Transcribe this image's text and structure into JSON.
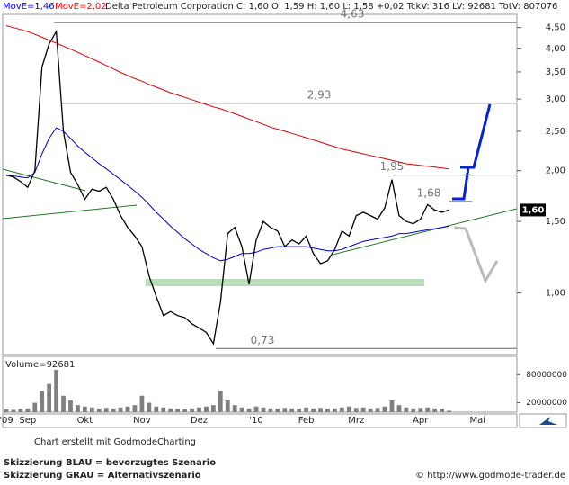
{
  "header": {
    "quote": "Delta Petroleum Corporation C: 1,60 O: 1,59 H: 1,60 L: 1,58 +0,02 TckV: 316 LV: 92681 TotV: 807076"
  },
  "chart_data": {
    "type": "line",
    "log_scale": true,
    "categories": [
      "'09",
      null,
      null,
      "Sep",
      null,
      null,
      null,
      null,
      null,
      null,
      null,
      "Okt",
      null,
      null,
      null,
      null,
      null,
      null,
      null,
      "Nov",
      null,
      null,
      null,
      null,
      null,
      null,
      null,
      "Dez",
      null,
      null,
      null,
      null,
      null,
      null,
      null,
      "'10",
      null,
      null,
      null,
      null,
      null,
      null,
      "Feb",
      null,
      null,
      null,
      null,
      null,
      null,
      "Mrz",
      null,
      null,
      null,
      null,
      null,
      null,
      null,
      null,
      "Apr",
      null,
      null,
      null,
      null,
      null,
      null,
      null,
      "Mai",
      null,
      null,
      null,
      null,
      null
    ],
    "ylim": [
      0.72,
      4.8
    ],
    "yticks": [
      {
        "value": 1,
        "label": "1,00"
      },
      {
        "value": 1.5,
        "label": "1,50"
      },
      {
        "value": 2,
        "label": "2,00"
      },
      {
        "value": 2.5,
        "label": "2,50"
      },
      {
        "value": 3,
        "label": "3,00"
      },
      {
        "value": 3.5,
        "label": "3,50"
      },
      {
        "value": 4,
        "label": "4,00"
      },
      {
        "value": 4.5,
        "label": "4,50"
      }
    ],
    "series": [
      {
        "color": "#000000",
        "values": [
          1.95,
          1.93,
          1.88,
          1.82,
          2.0,
          3.6,
          4.1,
          4.4,
          2.5,
          1.98,
          1.85,
          1.7,
          1.8,
          1.78,
          1.82,
          1.7,
          1.55,
          1.45,
          1.38,
          1.3,
          1.1,
          0.98,
          0.88,
          0.9,
          0.88,
          0.87,
          0.84,
          0.82,
          0.8,
          0.75,
          0.95,
          1.4,
          1.45,
          1.3,
          1.05,
          1.35,
          1.5,
          1.45,
          1.42,
          1.3,
          1.35,
          1.32,
          1.38,
          1.25,
          1.18,
          1.2,
          1.28,
          1.42,
          1.38,
          1.55,
          1.58,
          1.55,
          1.52,
          1.62,
          1.9,
          1.55,
          1.5,
          1.48,
          1.52,
          1.65,
          1.6,
          1.58,
          1.6,
          null,
          null,
          null,
          null,
          null,
          null,
          null,
          null,
          null
        ]
      },
      {
        "name": "MovE=1,46",
        "color": "#0000cc",
        "values": [
          1.95,
          1.94,
          1.93,
          1.92,
          1.98,
          2.2,
          2.4,
          2.55,
          2.5,
          2.4,
          2.3,
          2.22,
          2.15,
          2.08,
          2.02,
          1.96,
          1.9,
          1.84,
          1.78,
          1.72,
          1.65,
          1.58,
          1.52,
          1.46,
          1.41,
          1.36,
          1.32,
          1.28,
          1.25,
          1.22,
          1.2,
          1.21,
          1.23,
          1.25,
          1.25,
          1.26,
          1.28,
          1.29,
          1.3,
          1.3,
          1.3,
          1.3,
          1.3,
          1.29,
          1.28,
          1.27,
          1.27,
          1.28,
          1.3,
          1.32,
          1.34,
          1.35,
          1.36,
          1.37,
          1.38,
          1.4,
          1.4,
          1.41,
          1.42,
          1.43,
          1.44,
          1.45,
          1.46,
          null,
          null,
          null,
          null,
          null,
          null,
          null,
          null,
          null
        ]
      },
      {
        "name": "MovE=2,02",
        "color": "#dd0000",
        "values": [
          4.55,
          4.5,
          4.45,
          4.4,
          4.33,
          4.26,
          4.19,
          4.12,
          4.05,
          3.98,
          3.91,
          3.84,
          3.77,
          3.7,
          3.63,
          3.56,
          3.49,
          3.43,
          3.37,
          3.32,
          3.26,
          3.21,
          3.16,
          3.11,
          3.07,
          3.03,
          2.99,
          2.95,
          2.91,
          2.87,
          2.84,
          2.8,
          2.76,
          2.72,
          2.68,
          2.64,
          2.6,
          2.56,
          2.53,
          2.5,
          2.47,
          2.44,
          2.41,
          2.38,
          2.35,
          2.32,
          2.29,
          2.26,
          2.24,
          2.22,
          2.2,
          2.18,
          2.16,
          2.14,
          2.12,
          2.1,
          2.08,
          2.07,
          2.06,
          2.05,
          2.04,
          2.03,
          2.02,
          null,
          null,
          null,
          null,
          null,
          null,
          null,
          null,
          null
        ]
      }
    ],
    "levels": [
      {
        "value": 4.63,
        "label": "4,63"
      },
      {
        "value": 2.93,
        "label": "2,93"
      },
      {
        "value": 1.95,
        "label": "1,95"
      },
      {
        "value": 1.68,
        "label": "1,68"
      },
      {
        "value": 0.73,
        "label": "0,73"
      }
    ],
    "last_price": {
      "value": 1.6,
      "label": "1,60"
    },
    "volume": {
      "title": "Volume=92681",
      "color": "#808080",
      "values": [
        6000000,
        5000000,
        7000000,
        8000000,
        20000000,
        45000000,
        60000000,
        90000000,
        35000000,
        25000000,
        15000000,
        12000000,
        10000000,
        8000000,
        9000000,
        8000000,
        10000000,
        12000000,
        15000000,
        35000000,
        20000000,
        12000000,
        10000000,
        8000000,
        7000000,
        6000000,
        8000000,
        10000000,
        12000000,
        15000000,
        45000000,
        25000000,
        15000000,
        10000000,
        8000000,
        12000000,
        10000000,
        8000000,
        7000000,
        9000000,
        8000000,
        7000000,
        10000000,
        8000000,
        9000000,
        7000000,
        8000000,
        10000000,
        12000000,
        9000000,
        10000000,
        8000000,
        9000000,
        12000000,
        25000000,
        15000000,
        10000000,
        8000000,
        9000000,
        10000000,
        8000000,
        7000000,
        3000000,
        null,
        null,
        null,
        null,
        null,
        null,
        null,
        null,
        null
      ],
      "ylim": [
        0,
        115000000
      ],
      "yticks": [
        80000000,
        20000000
      ]
    }
  },
  "footer": {
    "credit": "Chart erstellt mit GodmodeCharting",
    "blue": "Skizzierung BLAU = bevorzugtes Szenario",
    "gray": "Skizzierung GRAU = Alternativszenario",
    "url": "© http://www.godmode-trader.de"
  }
}
